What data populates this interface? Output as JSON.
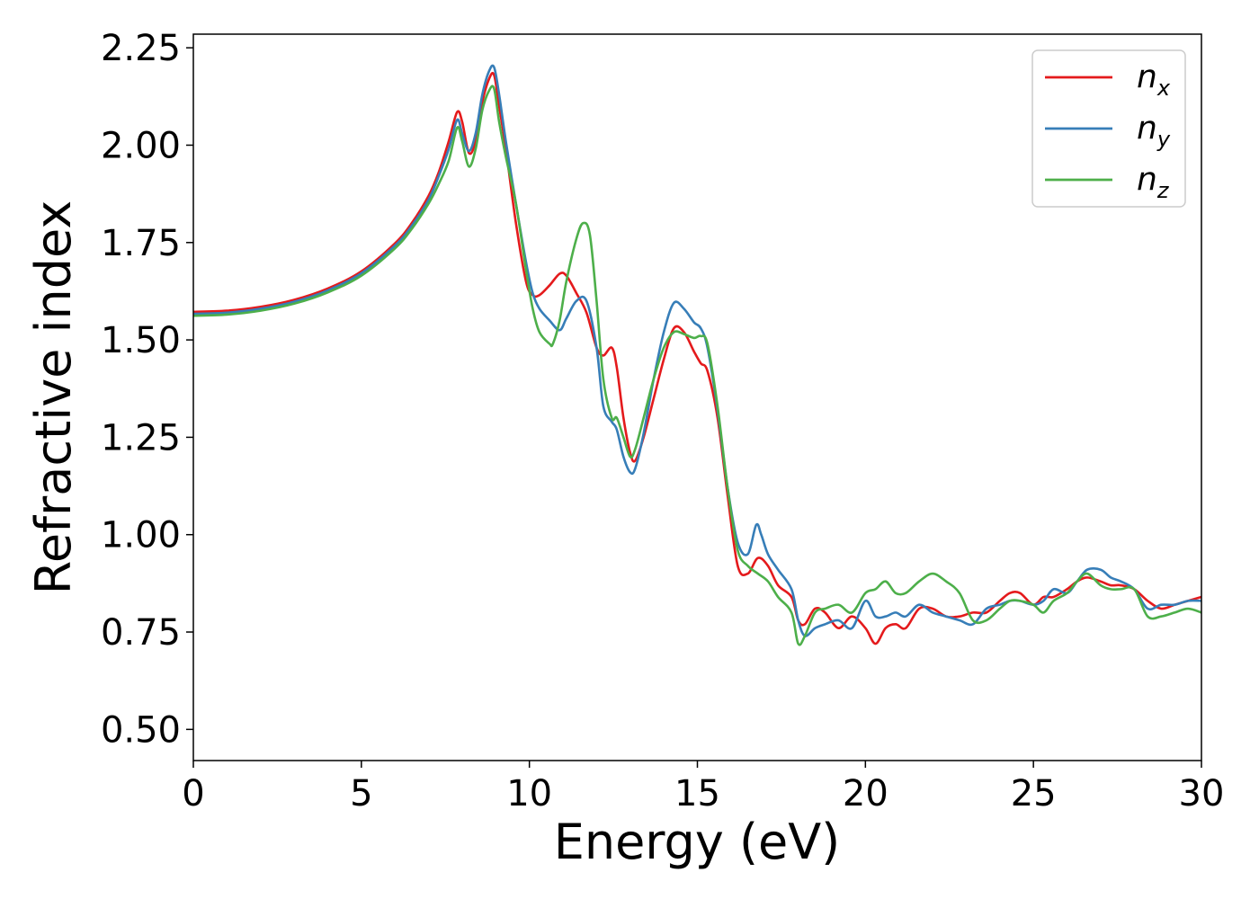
{
  "chart_data": {
    "type": "line",
    "title": "",
    "xlabel": "Energy (eV)",
    "ylabel": "Refractive index",
    "xlim": [
      0,
      30
    ],
    "ylim": [
      0.42,
      2.285
    ],
    "xticks": [
      0,
      5,
      10,
      15,
      20,
      25,
      30
    ],
    "xtick_labels": [
      "0",
      "5",
      "10",
      "15",
      "20",
      "25",
      "30"
    ],
    "yticks": [
      0.5,
      0.75,
      1.0,
      1.25,
      1.5,
      1.75,
      2.0,
      2.25
    ],
    "ytick_labels": [
      "0.50",
      "0.75",
      "1.00",
      "1.25",
      "1.50",
      "1.75",
      "2.00",
      "2.25"
    ],
    "grid": false,
    "legend_position": "top-right",
    "series": [
      {
        "name": "n_x",
        "legend_base": "n",
        "legend_sub": "x",
        "color": "#e41a1c",
        "x": [
          0,
          1,
          2,
          3,
          4,
          5,
          6,
          6.5,
          7,
          7.3,
          7.6,
          7.85,
          8.0,
          8.2,
          8.4,
          8.6,
          8.8,
          8.95,
          9.1,
          9.3,
          9.6,
          9.9,
          10.1,
          10.3,
          10.6,
          10.9,
          11.1,
          11.4,
          11.7,
          12.0,
          12.2,
          12.45,
          12.6,
          12.8,
          13.0,
          13.15,
          13.4,
          13.7,
          14.0,
          14.3,
          14.6,
          14.9,
          15.1,
          15.3,
          15.6,
          15.9,
          16.2,
          16.5,
          16.8,
          17.1,
          17.4,
          17.8,
          18.0,
          18.2,
          18.5,
          18.8,
          19.2,
          19.6,
          20.0,
          20.3,
          20.6,
          20.9,
          21.2,
          21.6,
          22.0,
          22.4,
          22.8,
          23.2,
          23.6,
          24.0,
          24.3,
          24.6,
          25.0,
          25.3,
          25.6,
          26.0,
          26.3,
          26.6,
          27.0,
          27.3,
          27.6,
          28.0,
          28.4,
          28.8,
          29.2,
          29.6,
          30.0
        ],
        "y": [
          1.572,
          1.575,
          1.585,
          1.603,
          1.632,
          1.676,
          1.748,
          1.8,
          1.87,
          1.93,
          2.01,
          2.085,
          2.06,
          1.98,
          2.01,
          2.11,
          2.17,
          2.18,
          2.1,
          1.99,
          1.8,
          1.65,
          1.615,
          1.615,
          1.64,
          1.67,
          1.665,
          1.62,
          1.57,
          1.48,
          1.46,
          1.48,
          1.43,
          1.3,
          1.21,
          1.19,
          1.25,
          1.35,
          1.45,
          1.53,
          1.52,
          1.47,
          1.44,
          1.42,
          1.3,
          1.1,
          0.92,
          0.9,
          0.94,
          0.92,
          0.87,
          0.84,
          0.78,
          0.77,
          0.81,
          0.8,
          0.76,
          0.79,
          0.76,
          0.72,
          0.76,
          0.77,
          0.76,
          0.81,
          0.81,
          0.79,
          0.79,
          0.8,
          0.8,
          0.83,
          0.85,
          0.85,
          0.82,
          0.84,
          0.84,
          0.86,
          0.88,
          0.89,
          0.88,
          0.87,
          0.87,
          0.86,
          0.83,
          0.81,
          0.82,
          0.83,
          0.84
        ]
      },
      {
        "name": "n_y",
        "legend_base": "n",
        "legend_sub": "y",
        "color": "#377eb8",
        "x": [
          0,
          1,
          2,
          3,
          4,
          5,
          6,
          6.5,
          7,
          7.3,
          7.6,
          7.85,
          8.0,
          8.2,
          8.4,
          8.6,
          8.8,
          8.95,
          9.1,
          9.3,
          9.6,
          9.9,
          10.1,
          10.3,
          10.6,
          10.9,
          11.1,
          11.4,
          11.7,
          12.0,
          12.2,
          12.45,
          12.6,
          12.8,
          13.0,
          13.15,
          13.4,
          13.7,
          14.0,
          14.3,
          14.6,
          14.9,
          15.1,
          15.3,
          15.6,
          15.9,
          16.2,
          16.5,
          16.75,
          16.9,
          17.1,
          17.4,
          17.8,
          18.0,
          18.2,
          18.5,
          18.8,
          19.2,
          19.6,
          20.0,
          20.3,
          20.6,
          20.9,
          21.2,
          21.6,
          22.0,
          22.4,
          22.8,
          23.2,
          23.6,
          24.0,
          24.3,
          24.6,
          25.0,
          25.3,
          25.6,
          26.0,
          26.3,
          26.6,
          27.0,
          27.3,
          27.6,
          28.0,
          28.4,
          28.8,
          29.2,
          29.6,
          30.0
        ],
        "y": [
          1.567,
          1.57,
          1.58,
          1.598,
          1.627,
          1.671,
          1.742,
          1.793,
          1.86,
          1.92,
          1.99,
          2.065,
          2.03,
          1.985,
          2.03,
          2.13,
          2.19,
          2.2,
          2.13,
          2.01,
          1.85,
          1.7,
          1.62,
          1.58,
          1.55,
          1.525,
          1.555,
          1.6,
          1.6,
          1.48,
          1.33,
          1.29,
          1.27,
          1.2,
          1.16,
          1.17,
          1.26,
          1.4,
          1.52,
          1.595,
          1.58,
          1.545,
          1.53,
          1.48,
          1.32,
          1.12,
          0.98,
          0.95,
          1.025,
          1.0,
          0.95,
          0.91,
          0.86,
          0.78,
          0.74,
          0.76,
          0.77,
          0.78,
          0.76,
          0.83,
          0.79,
          0.79,
          0.8,
          0.79,
          0.82,
          0.8,
          0.79,
          0.78,
          0.77,
          0.81,
          0.82,
          0.83,
          0.83,
          0.82,
          0.83,
          0.86,
          0.85,
          0.88,
          0.91,
          0.91,
          0.89,
          0.88,
          0.86,
          0.81,
          0.82,
          0.82,
          0.83,
          0.83
        ]
      },
      {
        "name": "n_z",
        "legend_base": "n",
        "legend_sub": "z",
        "color": "#4daf4a",
        "x": [
          0,
          1,
          2,
          3,
          4,
          5,
          6,
          6.5,
          7,
          7.3,
          7.6,
          7.85,
          8.0,
          8.2,
          8.4,
          8.6,
          8.8,
          8.95,
          9.1,
          9.3,
          9.6,
          9.9,
          10.1,
          10.3,
          10.6,
          10.7,
          10.9,
          11.1,
          11.4,
          11.6,
          11.8,
          12.0,
          12.2,
          12.45,
          12.6,
          12.8,
          13.0,
          13.15,
          13.4,
          13.7,
          14.0,
          14.3,
          14.6,
          14.9,
          15.1,
          15.3,
          15.6,
          15.9,
          16.2,
          16.5,
          16.8,
          17.1,
          17.4,
          17.8,
          18.0,
          18.2,
          18.5,
          18.8,
          19.2,
          19.6,
          20.0,
          20.3,
          20.6,
          20.9,
          21.2,
          21.6,
          22.0,
          22.4,
          22.8,
          23.2,
          23.6,
          24.0,
          24.3,
          24.6,
          25.0,
          25.3,
          25.6,
          26.0,
          26.3,
          26.6,
          27.0,
          27.3,
          27.6,
          28.0,
          28.4,
          28.8,
          29.2,
          29.6,
          30.0
        ],
        "y": [
          1.562,
          1.565,
          1.575,
          1.593,
          1.622,
          1.665,
          1.735,
          1.785,
          1.85,
          1.9,
          1.96,
          2.045,
          2.01,
          1.945,
          1.99,
          2.09,
          2.14,
          2.145,
          2.06,
          1.97,
          1.85,
          1.68,
          1.58,
          1.52,
          1.49,
          1.49,
          1.55,
          1.65,
          1.76,
          1.8,
          1.77,
          1.6,
          1.4,
          1.3,
          1.3,
          1.25,
          1.2,
          1.22,
          1.3,
          1.4,
          1.48,
          1.52,
          1.515,
          1.505,
          1.51,
          1.49,
          1.33,
          1.12,
          0.96,
          0.92,
          0.9,
          0.88,
          0.84,
          0.8,
          0.72,
          0.74,
          0.8,
          0.81,
          0.82,
          0.8,
          0.85,
          0.86,
          0.88,
          0.85,
          0.85,
          0.88,
          0.9,
          0.88,
          0.85,
          0.78,
          0.78,
          0.81,
          0.83,
          0.83,
          0.82,
          0.8,
          0.83,
          0.85,
          0.88,
          0.9,
          0.87,
          0.86,
          0.86,
          0.86,
          0.79,
          0.79,
          0.8,
          0.81,
          0.8
        ]
      }
    ]
  }
}
